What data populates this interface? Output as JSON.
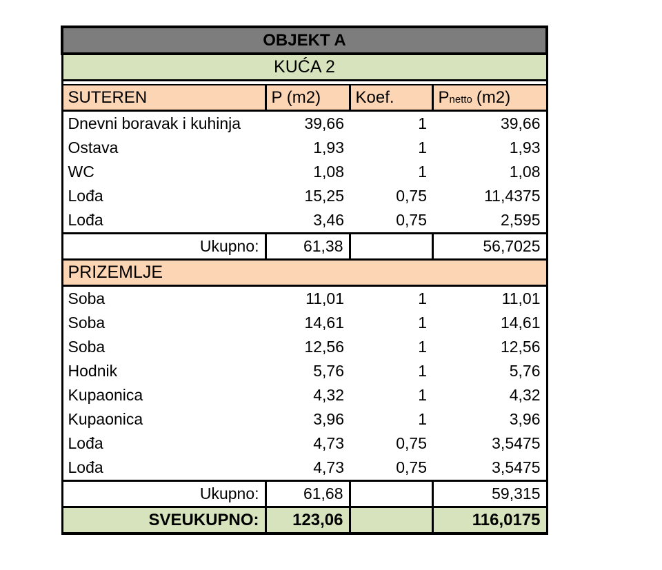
{
  "header": {
    "title": "OBJEKT A",
    "subtitle": "KUĆA 2"
  },
  "columns": {
    "p": "P (m2)",
    "koef": "Koef.",
    "pnetto_p": "P",
    "pnetto_sub": "netto",
    "pnetto_unit": "(m2)"
  },
  "sections": [
    {
      "name": "SUTEREN",
      "rows": [
        {
          "name": "Dnevni boravak i kuhinja",
          "p": "39,66",
          "koef": "1",
          "pnetto": "39,66"
        },
        {
          "name": "Ostava",
          "p": "1,93",
          "koef": "1",
          "pnetto": "1,93"
        },
        {
          "name": "WC",
          "p": "1,08",
          "koef": "1",
          "pnetto": "1,08"
        },
        {
          "name": "Lođa",
          "p": "15,25",
          "koef": "0,75",
          "pnetto": "11,4375"
        },
        {
          "name": "Lođa",
          "p": "3,46",
          "koef": "0,75",
          "pnetto": "2,595"
        }
      ],
      "total_label": "Ukupno:",
      "total_p": "61,38",
      "total_pnetto": "56,7025"
    },
    {
      "name": "PRIZEMLJE",
      "rows": [
        {
          "name": "Soba",
          "p": "11,01",
          "koef": "1",
          "pnetto": "11,01"
        },
        {
          "name": "Soba",
          "p": "14,61",
          "koef": "1",
          "pnetto": "14,61"
        },
        {
          "name": "Soba",
          "p": "12,56",
          "koef": "1",
          "pnetto": "12,56"
        },
        {
          "name": "Hodnik",
          "p": "5,76",
          "koef": "1",
          "pnetto": "5,76"
        },
        {
          "name": "Kupaonica",
          "p": "4,32",
          "koef": "1",
          "pnetto": "4,32"
        },
        {
          "name": "Kupaonica",
          "p": "3,96",
          "koef": "1",
          "pnetto": "3,96"
        },
        {
          "name": "Lođa",
          "p": "4,73",
          "koef": "0,75",
          "pnetto": "3,5475"
        },
        {
          "name": "Lođa",
          "p": "4,73",
          "koef": "0,75",
          "pnetto": "3,5475"
        }
      ],
      "total_label": "Ukupno:",
      "total_p": "61,68",
      "total_pnetto": "59,315"
    }
  ],
  "grand_total": {
    "label": "SVEUKUPNO:",
    "p": "123,06",
    "pnetto": "116,0175"
  },
  "colors": {
    "title_bg": "#7d7d7d",
    "subtotal_green_bg": "#d6e3bc",
    "section_peach_bg": "#fcd5b4",
    "border": "#000000",
    "text": "#000000"
  }
}
